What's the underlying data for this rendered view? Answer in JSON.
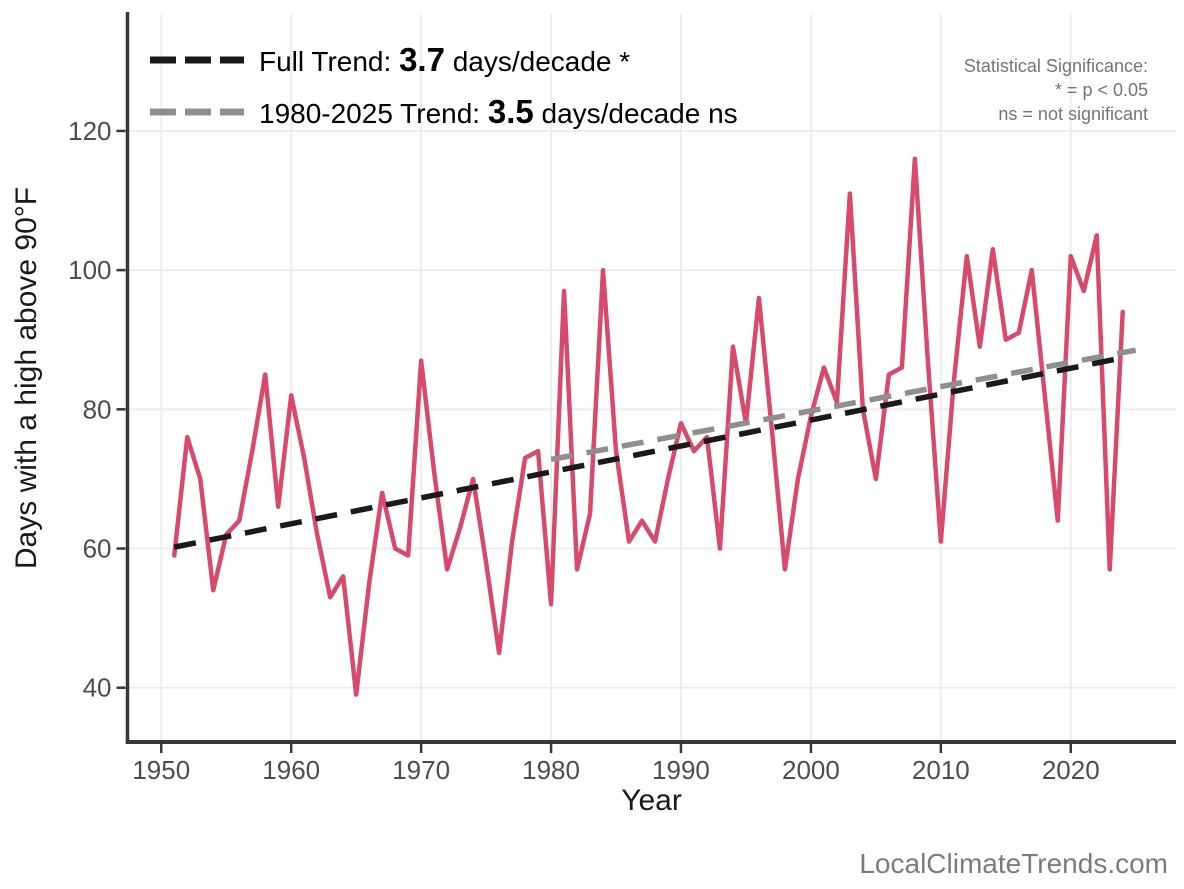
{
  "legend": {
    "rows": [
      {
        "prefix": "Full Trend: ",
        "value": "3.7",
        "suffix": " days/decade *",
        "color": "#1a1a1a"
      },
      {
        "prefix": "1980-2025 Trend: ",
        "value": "3.5",
        "suffix": " days/decade ns",
        "color": "#8f8f8f"
      }
    ]
  },
  "significance_note": {
    "line1": "Statistical Significance:",
    "line2": "* = p < 0.05",
    "line3": "ns = not significant"
  },
  "watermark": "LocalClimateTrends.com",
  "chart_data": {
    "type": "line",
    "title": "",
    "xlabel": "Year",
    "ylabel": "Days with a high above 90°F",
    "xlim": [
      1947.4,
      2028.1
    ],
    "ylim": [
      32.2,
      136.8
    ],
    "x_ticks": [
      1950,
      1960,
      1970,
      1980,
      1990,
      2000,
      2010,
      2020
    ],
    "y_ticks": [
      40,
      60,
      80,
      100,
      120
    ],
    "grid": true,
    "legend_position": "top-left",
    "colors": {
      "series": "#d84a6c",
      "full_trend": "#1a1a1a",
      "recent_trend": "#8f8f8f",
      "gridline": "#ececec",
      "spine": "#383838",
      "tick_text": "#4d4d4d"
    },
    "series": [
      {
        "name": "annual days above 90F",
        "color": "#d84a6c",
        "x": [
          1951,
          1952,
          1953,
          1954,
          1955,
          1956,
          1957,
          1958,
          1959,
          1960,
          1961,
          1962,
          1963,
          1964,
          1965,
          1966,
          1967,
          1968,
          1969,
          1970,
          1971,
          1972,
          1973,
          1974,
          1975,
          1976,
          1977,
          1978,
          1979,
          1980,
          1981,
          1982,
          1983,
          1984,
          1985,
          1986,
          1987,
          1988,
          1989,
          1990,
          1991,
          1992,
          1993,
          1994,
          1995,
          1996,
          1997,
          1998,
          1999,
          2000,
          2001,
          2002,
          2003,
          2004,
          2005,
          2006,
          2007,
          2008,
          2009,
          2010,
          2011,
          2012,
          2013,
          2014,
          2015,
          2016,
          2017,
          2018,
          2019,
          2020,
          2021,
          2022,
          2023,
          2024
        ],
        "values": [
          59,
          76,
          70,
          54,
          62,
          64,
          74,
          85,
          66,
          82,
          73,
          62,
          53,
          56,
          39,
          55,
          68,
          60,
          59,
          87,
          71,
          57,
          63,
          70,
          58,
          45,
          61,
          73,
          74,
          52,
          97,
          57,
          65,
          100,
          74,
          61,
          64,
          61,
          70,
          78,
          74,
          76,
          60,
          89,
          78,
          96,
          77,
          57,
          70,
          79,
          86,
          81,
          111,
          80,
          70,
          85,
          86,
          116,
          87,
          61,
          84,
          102,
          89,
          103,
          90,
          91,
          100,
          82,
          64,
          102,
          97,
          105,
          57,
          94
        ]
      }
    ],
    "trend_lines": [
      {
        "name": "full-trend",
        "label": "Full Trend: 3.7 days/decade *",
        "slope_days_per_decade": 3.7,
        "significance": "*",
        "color": "#1a1a1a",
        "x": [
          1951,
          2024
        ],
        "values": [
          60.2,
          87.4
        ]
      },
      {
        "name": "recent-trend",
        "label": "1980-2025 Trend: 3.5 days/decade ns",
        "slope_days_per_decade": 3.5,
        "significance": "ns",
        "color": "#8f8f8f",
        "x": [
          1980,
          2025
        ],
        "values": [
          72.8,
          88.5
        ]
      }
    ]
  }
}
